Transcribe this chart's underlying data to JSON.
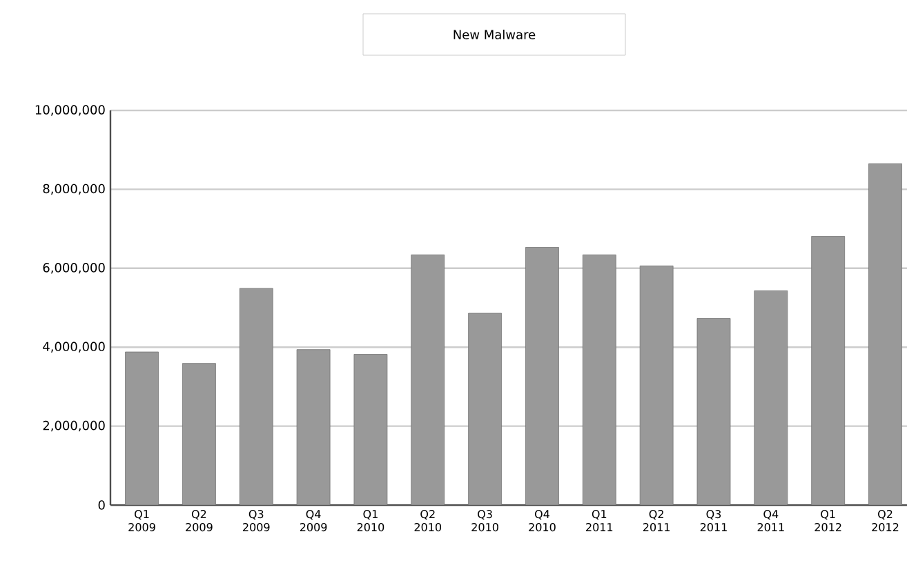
{
  "chart_data": {
    "type": "bar",
    "title": "New Malware",
    "categories": [
      "Q1 2009",
      "Q2 2009",
      "Q3 2009",
      "Q4 2009",
      "Q1 2010",
      "Q2 2010",
      "Q3 2010",
      "Q4 2010",
      "Q1 2011",
      "Q2 2011",
      "Q3 2011",
      "Q4 2011",
      "Q1 2012",
      "Q2 2012"
    ],
    "values": [
      3880000,
      3590000,
      5490000,
      3940000,
      3820000,
      6340000,
      4860000,
      6530000,
      6340000,
      6060000,
      4730000,
      5430000,
      6810000,
      8650000
    ],
    "color": "#999999",
    "ylim": [
      0,
      10000000
    ],
    "yticks": [
      0,
      {
        "value": 2000000,
        "label": "2,000,000"
      },
      {
        "value": 4000000,
        "label": "4,000,000"
      },
      {
        "value": 6000000,
        "label": "6,000,000"
      },
      {
        "value": 8000000,
        "label": "8,000,000"
      },
      {
        "value": 10000000,
        "label": "10,000,000"
      }
    ],
    "grid": "y"
  }
}
